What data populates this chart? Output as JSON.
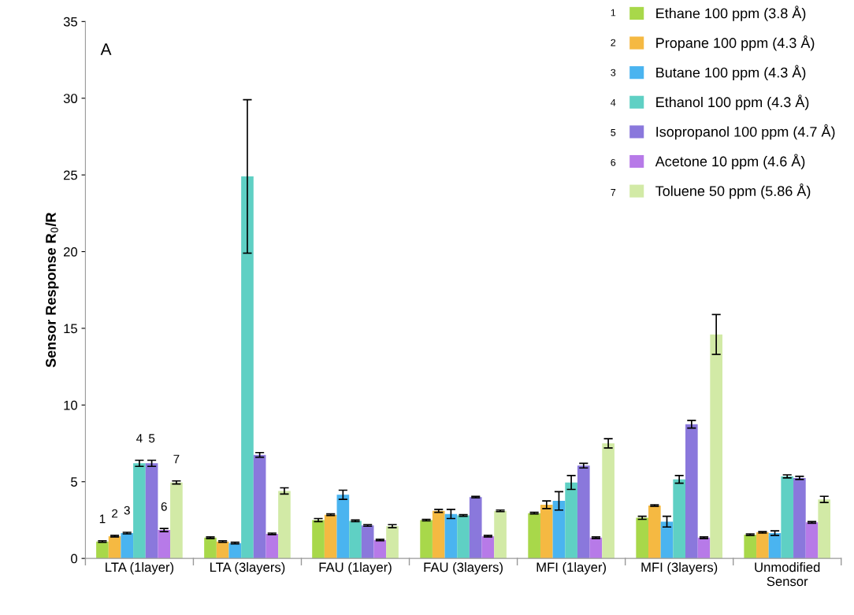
{
  "chart_data": {
    "type": "bar",
    "ylabel": "Sensor Response R$_{0}$/R",
    "categories": [
      "LTA (1layer)",
      "LTA (3layers)",
      "FAU (1layer)",
      "FAU (3layers)",
      "MFI (1layer)",
      "MFI (3layers)",
      "Unmodified\nSensor"
    ],
    "series": [
      {
        "name": "Ethane 100 ppm (3.8 Å)",
        "color": "#a8d84a",
        "values": [
          1.1,
          1.35,
          2.5,
          2.5,
          2.95,
          2.65,
          1.55
        ],
        "errors": [
          0.05,
          0.05,
          0.1,
          0.05,
          0.05,
          0.1,
          0.05
        ]
      },
      {
        "name": "Propane 100 ppm (4.3 Å)",
        "color": "#f5b942",
        "values": [
          1.45,
          1.1,
          2.85,
          3.1,
          3.5,
          3.45,
          1.7
        ],
        "errors": [
          0.05,
          0.05,
          0.05,
          0.1,
          0.25,
          0.05,
          0.05
        ]
      },
      {
        "name": "Butane 100 ppm (4.3 Å)",
        "color": "#4ab4f0",
        "values": [
          1.65,
          1.0,
          4.15,
          2.9,
          3.75,
          2.4,
          1.65
        ],
        "errors": [
          0.05,
          0.05,
          0.3,
          0.3,
          0.6,
          0.35,
          0.15
        ]
      },
      {
        "name": "Ethanol 100 ppm (4.3 Å)",
        "color": "#5fd0c4",
        "values": [
          6.2,
          24.9,
          2.45,
          2.8,
          4.95,
          5.15,
          5.35
        ],
        "errors": [
          0.2,
          5.0,
          0.05,
          0.05,
          0.45,
          0.25,
          0.1
        ]
      },
      {
        "name": "Isopropanol 100 ppm (4.7 Å)",
        "color": "#8a78dc",
        "values": [
          6.2,
          6.75,
          2.15,
          4.0,
          6.05,
          8.75,
          5.25
        ],
        "errors": [
          0.2,
          0.15,
          0.05,
          0.05,
          0.15,
          0.25,
          0.1
        ]
      },
      {
        "name": "Acetone 10 ppm (4.6 Å)",
        "color": "#b77ae8",
        "values": [
          1.85,
          1.6,
          1.2,
          1.45,
          1.35,
          1.35,
          2.35
        ],
        "errors": [
          0.1,
          0.05,
          0.05,
          0.05,
          0.05,
          0.05,
          0.05
        ]
      },
      {
        "name": "Toluene 50 ppm (5.86 Å)",
        "color": "#d2eaa6",
        "values": [
          4.95,
          4.4,
          2.1,
          3.1,
          7.5,
          14.6,
          3.85
        ],
        "errors": [
          0.1,
          0.2,
          0.1,
          0.05,
          0.3,
          1.3,
          0.2
        ]
      }
    ],
    "ylim": [
      0,
      35
    ],
    "yticks": [
      0,
      5,
      10,
      15,
      20,
      25,
      30,
      35
    ],
    "annotations": [
      "A",
      "1",
      "2",
      "3",
      "4",
      "5",
      "6",
      "7"
    ],
    "legend": "top right",
    "grid": false
  }
}
